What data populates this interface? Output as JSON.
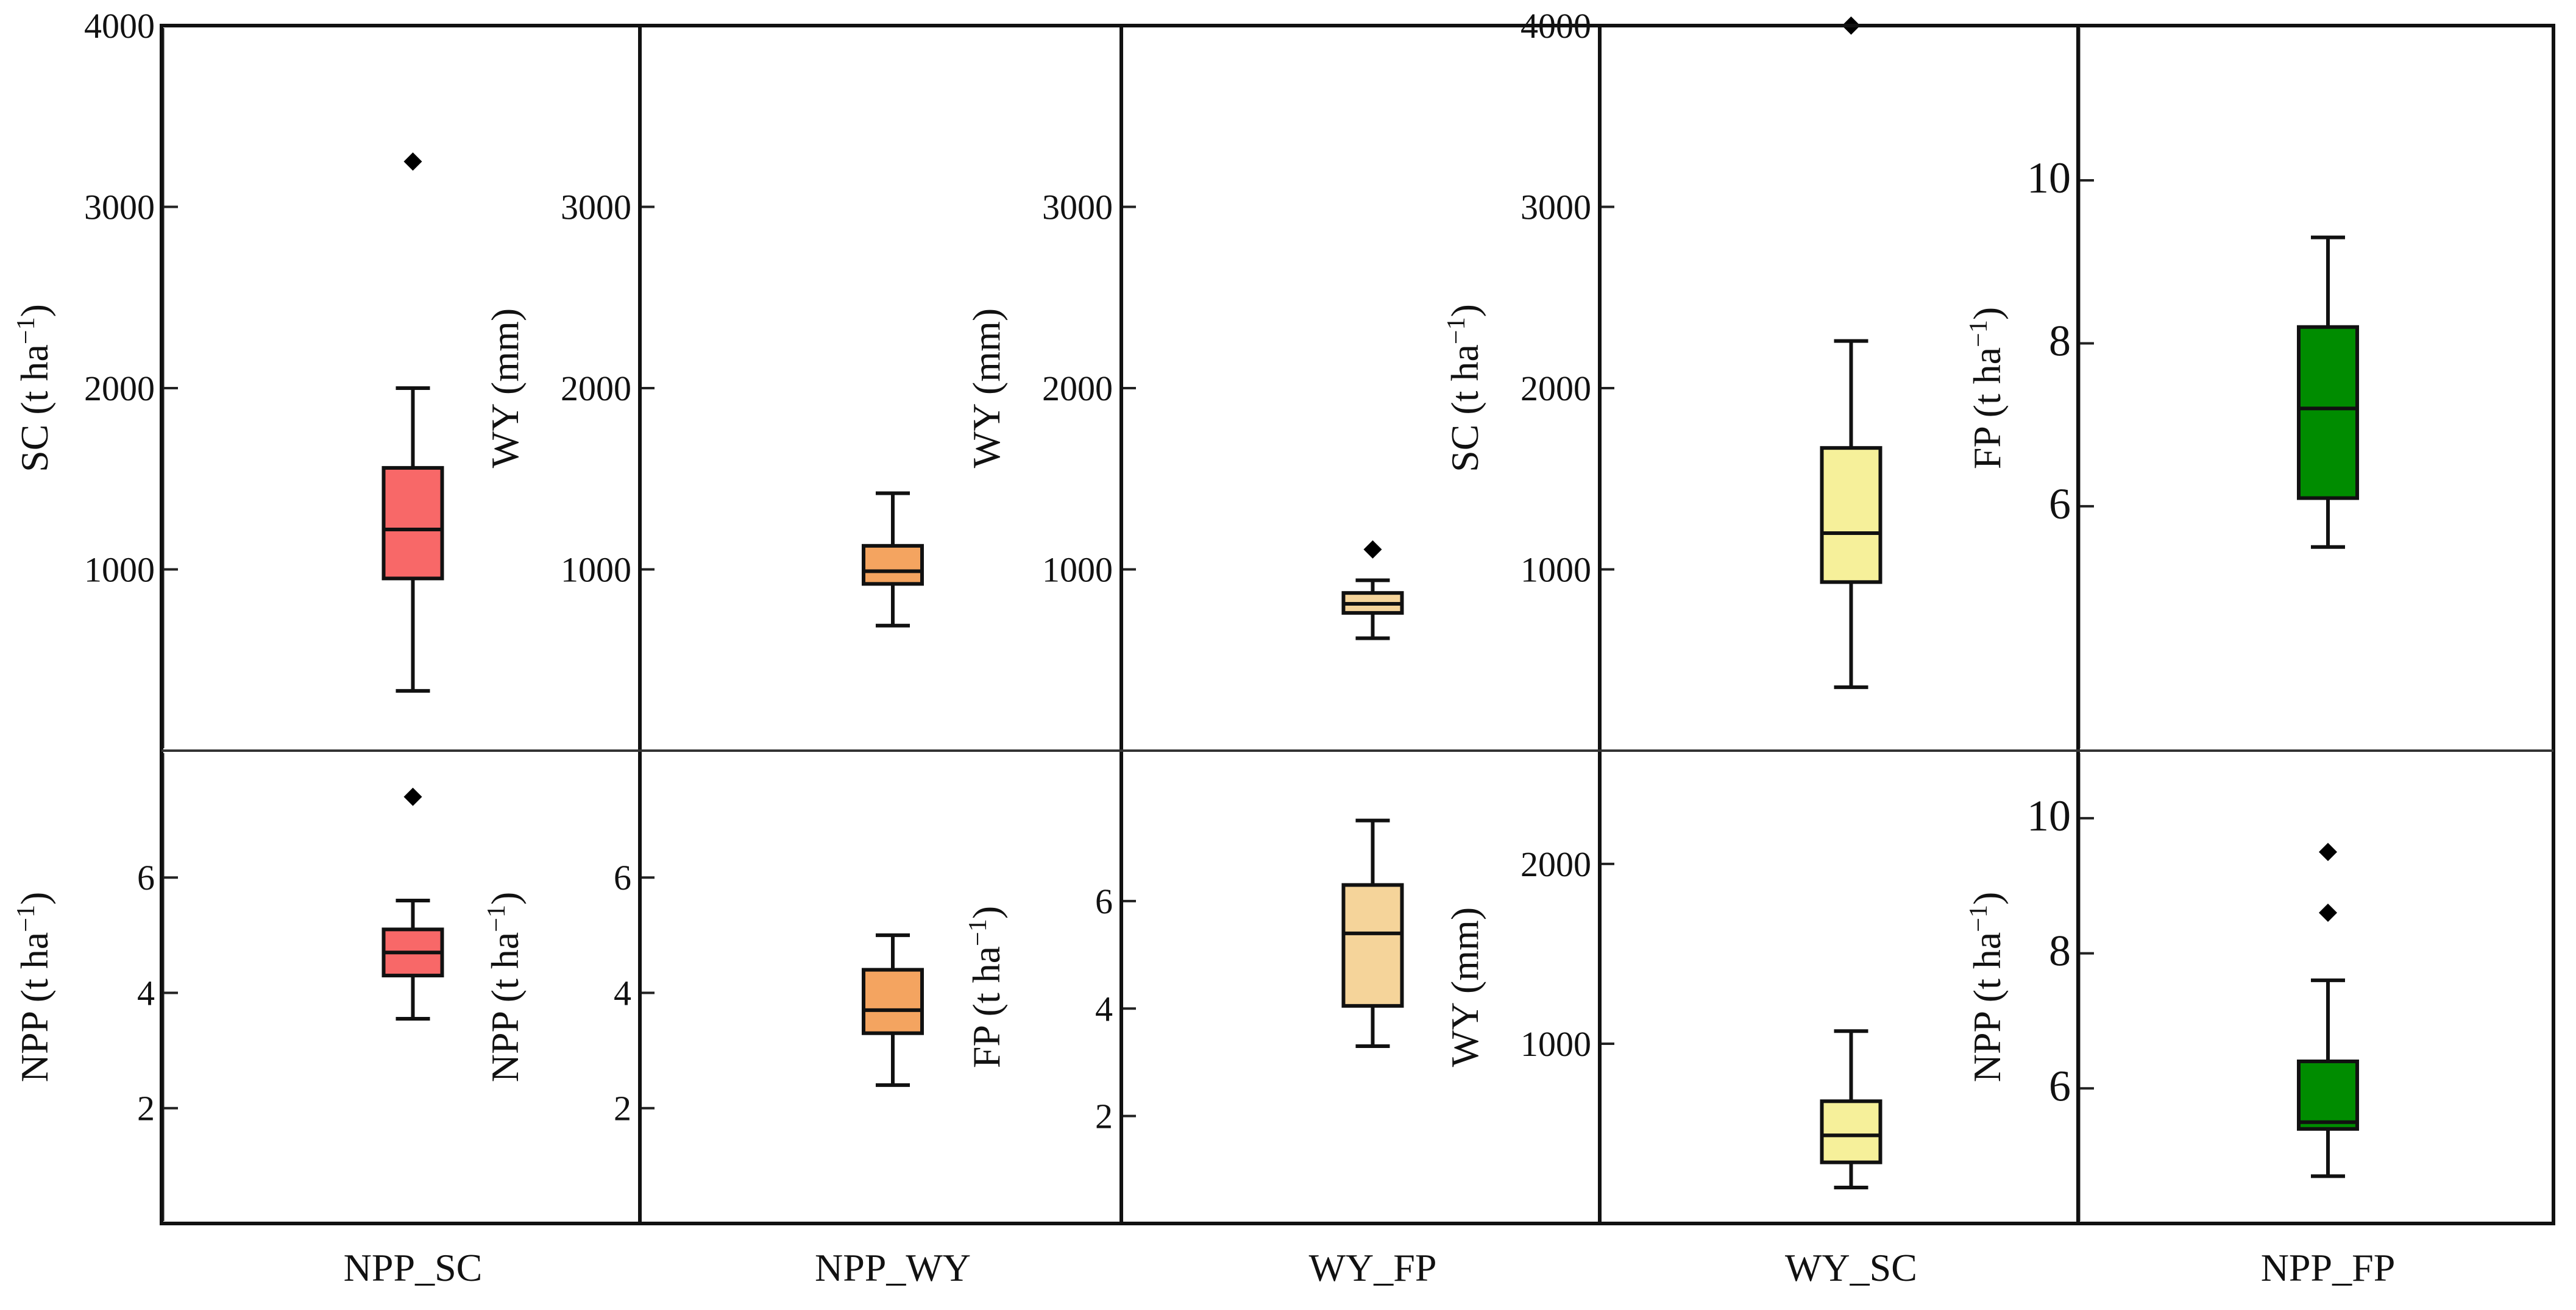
{
  "chart_data": [
    {
      "type": "box",
      "pair": "NPP_SC",
      "row": "top",
      "ylabel": "SC (t ha",
      "ylabel_sup": "−1",
      "ylabel_close": ")",
      "ylim": [
        0,
        4000
      ],
      "ticks": [
        "1000",
        "2000",
        "3000",
        "4000"
      ],
      "tick_values": [
        1000,
        2000,
        3000,
        4000
      ],
      "min": 330,
      "q1": 950,
      "median": 1220,
      "q3": 1560,
      "max": 2000,
      "outliers": [
        3250
      ],
      "color": "#f86868"
    },
    {
      "type": "box",
      "pair": "NPP_WY",
      "row": "top",
      "ylabel": "WY (mm)",
      "ylim": [
        0,
        4000
      ],
      "ticks": [
        "1000",
        "2000",
        "3000"
      ],
      "tick_values": [
        1000,
        2000,
        3000
      ],
      "min": 690,
      "q1": 920,
      "median": 990,
      "q3": 1130,
      "max": 1420,
      "outliers": [],
      "color": "#f4a460"
    },
    {
      "type": "box",
      "pair": "WY_FP",
      "row": "top",
      "ylabel": "WY (mm)",
      "ylim": [
        0,
        4000
      ],
      "ticks": [
        "1000",
        "2000",
        "3000"
      ],
      "tick_values": [
        1000,
        2000,
        3000
      ],
      "min": 620,
      "q1": 760,
      "median": 810,
      "q3": 870,
      "max": 940,
      "outliers": [
        1110
      ],
      "color": "#f5d49a"
    },
    {
      "type": "box",
      "pair": "WY_SC",
      "row": "top",
      "ylabel": "SC (t ha",
      "ylabel_sup": "−1",
      "ylabel_close": ")",
      "ylim": [
        0,
        4000
      ],
      "ticks": [
        "1000",
        "2000",
        "3000",
        "4000"
      ],
      "tick_values": [
        1000,
        2000,
        3000,
        4000
      ],
      "min": 350,
      "q1": 930,
      "median": 1200,
      "q3": 1670,
      "max": 2260,
      "outliers": [
        4000
      ],
      "color": "#f6f09a"
    },
    {
      "type": "box",
      "pair": "NPP_FP",
      "row": "top",
      "ylabel": "FP (t ha",
      "ylabel_sup": "−1",
      "ylabel_close": ")",
      "ylim": [
        3,
        11.9
      ],
      "ticks": [
        "6",
        "8",
        "10"
      ],
      "tick_values": [
        6,
        8,
        10
      ],
      "min": 5.5,
      "q1": 6.1,
      "median": 7.2,
      "q3": 8.2,
      "max": 9.3,
      "outliers": [],
      "color": "#008c00"
    },
    {
      "type": "box",
      "pair": "NPP_SC",
      "row": "bottom",
      "ylabel": "NPP (t ha",
      "ylabel_sup": "−1",
      "ylabel_close": ")",
      "ylim": [
        0,
        8.2
      ],
      "ticks": [
        "2",
        "4",
        "6"
      ],
      "tick_values": [
        2,
        4,
        6
      ],
      "min": 3.55,
      "q1": 4.3,
      "median": 4.7,
      "q3": 5.1,
      "max": 5.6,
      "outliers": [
        7.4
      ],
      "color": "#f86868"
    },
    {
      "type": "box",
      "pair": "NPP_WY",
      "row": "bottom",
      "ylabel": "NPP (t ha",
      "ylabel_sup": "−1",
      "ylabel_close": ")",
      "ylim": [
        0,
        8.2
      ],
      "ticks": [
        "2",
        "4",
        "6"
      ],
      "tick_values": [
        2,
        4,
        6
      ],
      "min": 2.4,
      "q1": 3.3,
      "median": 3.7,
      "q3": 4.4,
      "max": 5.0,
      "outliers": [],
      "color": "#f4a460"
    },
    {
      "type": "box",
      "pair": "WY_FP",
      "row": "bottom",
      "ylabel": "FP (t ha",
      "ylabel_sup": "−1",
      "ylabel_close": ")",
      "ylim": [
        0,
        8.8
      ],
      "ticks": [
        "2",
        "4",
        "6"
      ],
      "tick_values": [
        2,
        4,
        6
      ],
      "min": 3.3,
      "q1": 4.05,
      "median": 5.4,
      "q3": 6.3,
      "max": 7.5,
      "outliers": [],
      "color": "#f5d49a"
    },
    {
      "type": "box",
      "pair": "WY_SC",
      "row": "bottom",
      "ylabel": "WY (mm)",
      "ylim": [
        0,
        2630
      ],
      "ticks": [
        "1000",
        "2000"
      ],
      "tick_values": [
        1000,
        2000
      ],
      "min": 200,
      "q1": 340,
      "median": 490,
      "q3": 680,
      "max": 1070,
      "outliers": [],
      "color": "#f6f09a"
    },
    {
      "type": "box",
      "pair": "NPP_FP",
      "row": "bottom",
      "ylabel": "NPP (t ha",
      "ylabel_sup": "−1",
      "ylabel_close": ")",
      "ylim": [
        4,
        11
      ],
      "ticks": [
        "6",
        "8",
        "10"
      ],
      "tick_values": [
        6,
        8,
        10
      ],
      "min": 4.7,
      "q1": 5.4,
      "median": 5.5,
      "q3": 6.4,
      "max": 7.6,
      "outliers": [
        8.6,
        9.5
      ],
      "color": "#008c00"
    }
  ],
  "column_labels": [
    "NPP_SC",
    "NPP_WY",
    "WY_FP",
    "WY_SC",
    "NPP_FP"
  ]
}
